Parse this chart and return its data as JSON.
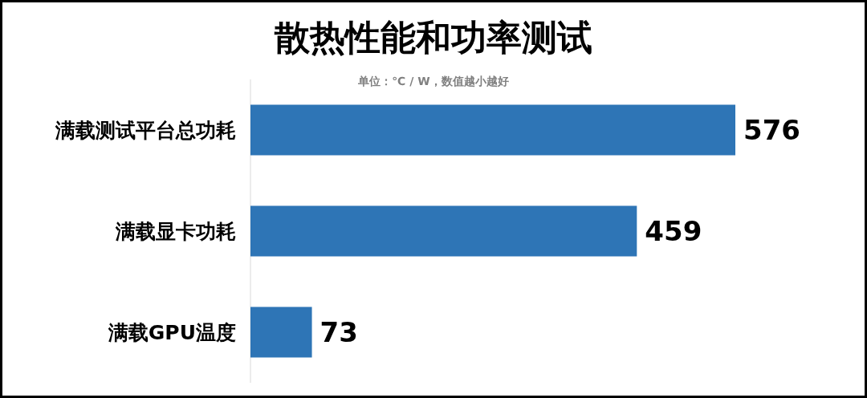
{
  "chart_data": {
    "type": "bar",
    "orientation": "horizontal",
    "title": "散热性能和功率测试",
    "subtitle": "单位：℃ / W，数值越小越好",
    "categories": [
      "满载测试平台总功耗",
      "满载显卡功耗",
      "满载GPU温度"
    ],
    "values": [
      576,
      459,
      73
    ],
    "color": "#2e75b6",
    "data_labels": true
  }
}
